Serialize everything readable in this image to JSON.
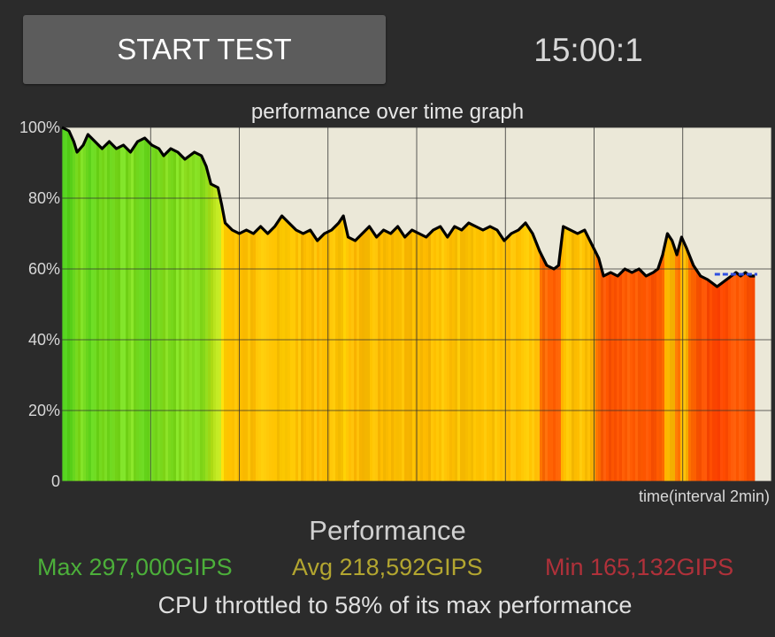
{
  "controls": {
    "start_label": "START TEST",
    "timer": "15:00:1"
  },
  "chart_data": {
    "type": "area",
    "title": "performance over time graph",
    "xlabel": "time(interval 2min)",
    "ylabel": "",
    "ylim": [
      0,
      100
    ],
    "y_ticks": [
      "0",
      "20%",
      "40%",
      "60%",
      "80%",
      "100%"
    ],
    "x_range_min": [
      0,
      15
    ],
    "grid": true,
    "series": [
      {
        "values": [
          [
            0,
            100
          ],
          [
            0.15,
            99
          ],
          [
            0.25,
            96
          ],
          [
            0.32,
            93
          ],
          [
            0.45,
            95
          ],
          [
            0.55,
            98
          ],
          [
            0.7,
            96
          ],
          [
            0.85,
            94
          ],
          [
            1.0,
            96
          ],
          [
            1.15,
            94
          ],
          [
            1.3,
            95
          ],
          [
            1.45,
            93
          ],
          [
            1.6,
            96
          ],
          [
            1.75,
            97
          ],
          [
            1.9,
            95
          ],
          [
            2.05,
            94
          ],
          [
            2.15,
            92
          ],
          [
            2.3,
            94
          ],
          [
            2.45,
            93
          ],
          [
            2.6,
            91
          ],
          [
            2.8,
            93
          ],
          [
            2.95,
            92
          ],
          [
            3.05,
            89
          ],
          [
            3.15,
            84
          ],
          [
            3.3,
            83
          ],
          [
            3.38,
            78
          ],
          [
            3.45,
            73
          ],
          [
            3.6,
            71
          ],
          [
            3.75,
            70
          ],
          [
            3.9,
            71
          ],
          [
            4.05,
            70
          ],
          [
            4.2,
            72
          ],
          [
            4.35,
            70
          ],
          [
            4.5,
            72
          ],
          [
            4.65,
            75
          ],
          [
            4.8,
            73
          ],
          [
            4.95,
            71
          ],
          [
            5.1,
            70
          ],
          [
            5.25,
            71
          ],
          [
            5.4,
            68
          ],
          [
            5.55,
            70
          ],
          [
            5.7,
            71
          ],
          [
            5.85,
            73
          ],
          [
            5.95,
            75
          ],
          [
            6.05,
            69
          ],
          [
            6.2,
            68
          ],
          [
            6.35,
            70
          ],
          [
            6.5,
            72
          ],
          [
            6.65,
            69
          ],
          [
            6.8,
            71
          ],
          [
            6.95,
            70
          ],
          [
            7.1,
            72
          ],
          [
            7.25,
            69
          ],
          [
            7.4,
            71
          ],
          [
            7.55,
            70
          ],
          [
            7.7,
            69
          ],
          [
            7.85,
            71
          ],
          [
            8.0,
            72
          ],
          [
            8.15,
            69
          ],
          [
            8.3,
            72
          ],
          [
            8.45,
            71
          ],
          [
            8.6,
            73
          ],
          [
            8.75,
            72
          ],
          [
            8.9,
            71
          ],
          [
            9.05,
            72
          ],
          [
            9.2,
            71
          ],
          [
            9.35,
            68
          ],
          [
            9.5,
            70
          ],
          [
            9.65,
            71
          ],
          [
            9.8,
            73
          ],
          [
            9.95,
            70
          ],
          [
            10.1,
            65
          ],
          [
            10.25,
            61
          ],
          [
            10.4,
            60
          ],
          [
            10.5,
            61
          ],
          [
            10.6,
            72
          ],
          [
            10.75,
            71
          ],
          [
            10.9,
            70
          ],
          [
            11.05,
            71
          ],
          [
            11.2,
            67
          ],
          [
            11.35,
            63
          ],
          [
            11.45,
            58
          ],
          [
            11.6,
            59
          ],
          [
            11.75,
            58
          ],
          [
            11.9,
            60
          ],
          [
            12.05,
            59
          ],
          [
            12.2,
            60
          ],
          [
            12.35,
            58
          ],
          [
            12.5,
            59
          ],
          [
            12.6,
            60
          ],
          [
            12.7,
            64
          ],
          [
            12.8,
            70
          ],
          [
            12.9,
            68
          ],
          [
            13.0,
            64
          ],
          [
            13.1,
            69
          ],
          [
            13.2,
            66
          ],
          [
            13.35,
            61
          ],
          [
            13.5,
            58
          ],
          [
            13.65,
            57
          ],
          [
            13.75,
            56
          ],
          [
            13.85,
            55
          ],
          [
            13.95,
            56
          ],
          [
            14.05,
            57
          ],
          [
            14.15,
            58
          ],
          [
            14.25,
            59
          ],
          [
            14.35,
            58
          ],
          [
            14.45,
            59
          ],
          [
            14.55,
            58
          ],
          [
            14.65,
            58
          ]
        ]
      }
    ],
    "reference_line": {
      "value": 58.5,
      "x_from": 13.8,
      "x_to": 14.7,
      "color": "#2f4fe0"
    },
    "colors": {
      "background": "#ebe8d8",
      "line": "#000000",
      "gridline": "#333333",
      "high": "#55d41f",
      "mid": "#ffb300",
      "low": "#ff4500"
    }
  },
  "stats": {
    "heading": "Performance",
    "max": "Max 297,000GIPS",
    "avg": "Avg 218,592GIPS",
    "min": "Min 165,132GIPS",
    "throttle_note": "CPU throttled to 58% of its max performance",
    "colors": {
      "max": "#4caf3a",
      "avg": "#b3a630",
      "min": "#b0313a"
    }
  }
}
